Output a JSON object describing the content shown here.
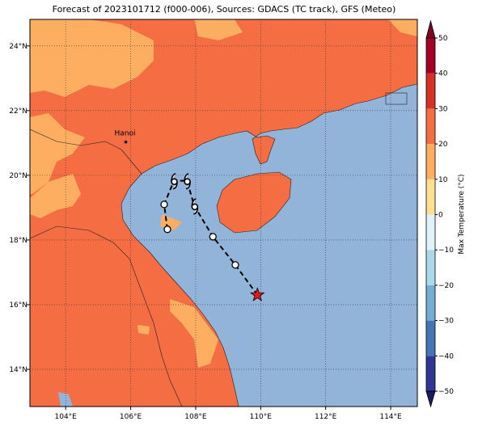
{
  "chart_data": {
    "type": "map",
    "title": "Forecast of 2023101712 (f000-006), Sources: GDACS (TC track), GFS (Meteo)",
    "xlim": [
      102.9,
      114.82
    ],
    "ylim": [
      12.85,
      24.82
    ],
    "xticks": [
      {
        "value": 104,
        "label": "104°E"
      },
      {
        "value": 106,
        "label": "106°E"
      },
      {
        "value": 108,
        "label": "108°E"
      },
      {
        "value": 110,
        "label": "110°E"
      },
      {
        "value": 112,
        "label": "112°E"
      },
      {
        "value": 114,
        "label": "114°E"
      }
    ],
    "yticks": [
      {
        "value": 14,
        "label": "14°N"
      },
      {
        "value": 16,
        "label": "16°N"
      },
      {
        "value": 18,
        "label": "18°N"
      },
      {
        "value": 20,
        "label": "20°N"
      },
      {
        "value": 22,
        "label": "22°N"
      },
      {
        "value": 24,
        "label": "24°N"
      }
    ],
    "grid": true,
    "cities": [
      {
        "name": "Hanoi",
        "lon": 105.85,
        "lat": 21.03
      }
    ],
    "track": {
      "lon": [
        109.9,
        109.22,
        108.53,
        107.96,
        107.73,
        107.33,
        107.03,
        107.13
      ],
      "lat": [
        16.3,
        17.23,
        18.1,
        19.05,
        19.83,
        19.83,
        19.1,
        18.33
      ],
      "markers": [
        "star",
        "circle",
        "circle",
        "cyclone",
        "cyclone",
        "cyclone",
        "circle",
        "circle"
      ],
      "color": "#000000",
      "star_color": "#e8161b"
    },
    "colorbar": {
      "label": "Max Temperature (°C)",
      "lim": [
        -50,
        50
      ],
      "ticks": [
        {
          "value": -50,
          "label": "−50"
        },
        {
          "value": -40,
          "label": "−40"
        },
        {
          "value": -30,
          "label": "−30"
        },
        {
          "value": -20,
          "label": "−20"
        },
        {
          "value": -10,
          "label": "−10"
        },
        0,
        10,
        20,
        30,
        40,
        50
      ],
      "colors": [
        "#313695",
        "#4575b4",
        "#74add1",
        "#abd9e9",
        "#e0f3f8",
        "#fee090",
        "#fdae61",
        "#f46d43",
        "#d73027",
        "#a50026"
      ],
      "under": "#1a1a5e",
      "over": "#800026"
    }
  }
}
